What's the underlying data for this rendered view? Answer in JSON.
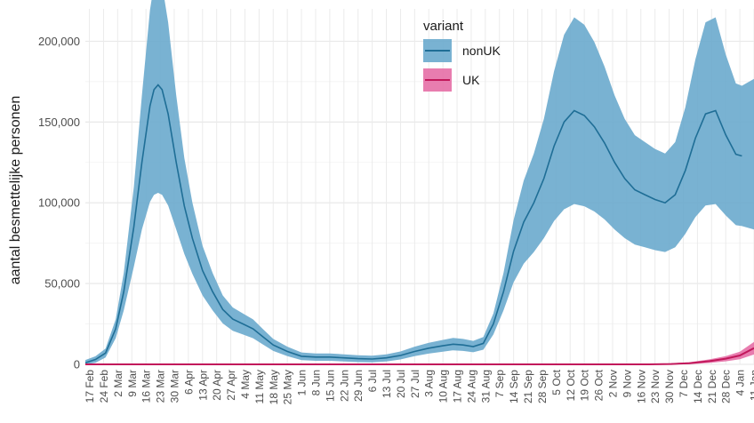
{
  "chart_data": {
    "type": "area",
    "title": "",
    "xlabel": "",
    "ylabel": "aantal besmettelijke personen",
    "grid": true,
    "legend": {
      "title": "variant",
      "placement": "top-center",
      "entries": [
        "nonUK",
        "UK"
      ]
    },
    "colors": {
      "nonUK_line": "#1f6e96",
      "nonUK_band": "#6aaacd",
      "UK_line": "#c2185b",
      "UK_band": "#e56fa6"
    },
    "ylim": [
      0,
      220000
    ],
    "yticks": [
      0,
      50000,
      100000,
      150000,
      200000
    ],
    "ytick_labels": [
      "0",
      "50,000",
      "100,000",
      "150,000",
      "200,000"
    ],
    "xlim": [
      "2020-02-15",
      "2021-01-11"
    ],
    "xticks": [
      "2020-02-17",
      "2020-02-24",
      "2020-03-02",
      "2020-03-09",
      "2020-03-16",
      "2020-03-23",
      "2020-03-30",
      "2020-04-06",
      "2020-04-13",
      "2020-04-20",
      "2020-04-27",
      "2020-05-04",
      "2020-05-11",
      "2020-05-18",
      "2020-05-25",
      "2020-06-01",
      "2020-06-08",
      "2020-06-15",
      "2020-06-22",
      "2020-06-29",
      "2020-07-06",
      "2020-07-13",
      "2020-07-20",
      "2020-07-27",
      "2020-08-03",
      "2020-08-10",
      "2020-08-17",
      "2020-08-24",
      "2020-08-31",
      "2020-09-07",
      "2020-09-14",
      "2020-09-21",
      "2020-09-28",
      "2020-10-05",
      "2020-10-12",
      "2020-10-19",
      "2020-10-26",
      "2020-11-02",
      "2020-11-09",
      "2020-11-16",
      "2020-11-23",
      "2020-11-30",
      "2020-12-07",
      "2020-12-14",
      "2020-12-21",
      "2020-12-28",
      "2021-01-04",
      "2021-01-11"
    ],
    "xtick_labels": [
      "17 Feb",
      "24 Feb",
      "2 Mar",
      "9 Mar",
      "16 Mar",
      "23 Mar",
      "30 Mar",
      "6 Apr",
      "13 Apr",
      "20 Apr",
      "27 Apr",
      "4 May",
      "11 May",
      "18 May",
      "25 May",
      "1 Jun",
      "8 Jun",
      "15 Jun",
      "22 Jun",
      "29 Jun",
      "6 Jul",
      "13 Jul",
      "20 Jul",
      "27 Jul",
      "3 Aug",
      "10 Aug",
      "17 Aug",
      "24 Aug",
      "31 Aug",
      "7 Sep",
      "14 Sep",
      "21 Sep",
      "28 Sep",
      "5 Oct",
      "12 Oct",
      "19 Oct",
      "26 Oct",
      "2 Nov",
      "9 Nov",
      "16 Nov",
      "23 Nov",
      "30 Nov",
      "7 Dec",
      "14 Dec",
      "21 Dec",
      "28 Dec",
      "4 Jan",
      "11 Jan"
    ],
    "series": [
      {
        "name": "nonUK",
        "x": [
          "2020-02-15",
          "2020-02-20",
          "2020-02-25",
          "2020-03-01",
          "2020-03-05",
          "2020-03-10",
          "2020-03-14",
          "2020-03-18",
          "2020-03-20",
          "2020-03-22",
          "2020-03-24",
          "2020-03-27",
          "2020-03-31",
          "2020-04-04",
          "2020-04-08",
          "2020-04-13",
          "2020-04-18",
          "2020-04-23",
          "2020-04-28",
          "2020-05-03",
          "2020-05-08",
          "2020-05-13",
          "2020-05-18",
          "2020-05-25",
          "2020-06-01",
          "2020-06-08",
          "2020-06-15",
          "2020-06-22",
          "2020-06-29",
          "2020-07-06",
          "2020-07-13",
          "2020-07-20",
          "2020-07-27",
          "2020-08-03",
          "2020-08-10",
          "2020-08-15",
          "2020-08-20",
          "2020-08-25",
          "2020-08-30",
          "2020-09-04",
          "2020-09-09",
          "2020-09-14",
          "2020-09-19",
          "2020-09-24",
          "2020-09-29",
          "2020-10-04",
          "2020-10-09",
          "2020-10-14",
          "2020-10-19",
          "2020-10-24",
          "2020-10-29",
          "2020-11-03",
          "2020-11-08",
          "2020-11-13",
          "2020-11-18",
          "2020-11-23",
          "2020-11-28",
          "2020-12-03",
          "2020-12-08",
          "2020-12-13",
          "2020-12-18",
          "2020-12-23",
          "2020-12-28",
          "2021-01-02",
          "2021-01-05"
        ],
        "values": [
          1000,
          3000,
          7000,
          22000,
          45000,
          85000,
          125000,
          160000,
          170000,
          173000,
          170000,
          155000,
          125000,
          98000,
          78000,
          58000,
          45000,
          34000,
          28000,
          25000,
          22000,
          17000,
          12000,
          8000,
          5000,
          4500,
          4500,
          4000,
          3500,
          3300,
          4000,
          5500,
          8000,
          10000,
          11500,
          12500,
          12000,
          11000,
          13000,
          25000,
          45000,
          70000,
          88000,
          100000,
          115000,
          135000,
          150000,
          157000,
          154000,
          147000,
          137000,
          125000,
          115000,
          108000,
          105000,
          102000,
          100000,
          105000,
          120000,
          140000,
          155000,
          157000,
          142000,
          130000,
          129000
        ]
      },
      {
        "name": "UK",
        "x": [
          "2020-02-15",
          "2020-11-20",
          "2020-12-01",
          "2020-12-10",
          "2020-12-20",
          "2020-12-28",
          "2021-01-04",
          "2021-01-11"
        ],
        "values": [
          0,
          0,
          200,
          700,
          2000,
          3500,
          5500,
          10000
        ]
      }
    ]
  }
}
